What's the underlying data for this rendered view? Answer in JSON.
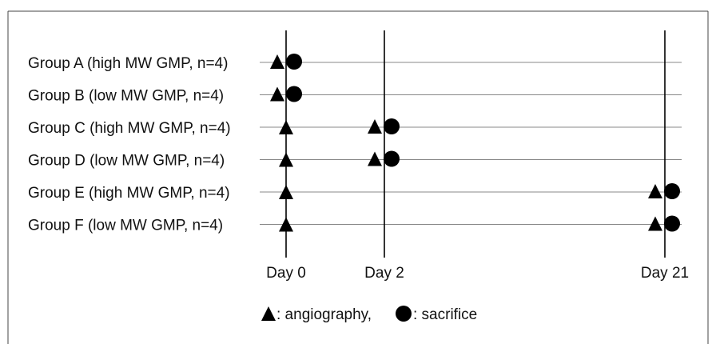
{
  "groups": [
    {
      "label": "Group A (high MW GMP, n=4)",
      "angiography_day": "Day 0",
      "sacrifice_day": "Day 0"
    },
    {
      "label": "Group B (low MW GMP, n=4)",
      "angiography_day": "Day 0",
      "sacrifice_day": "Day 0"
    },
    {
      "label": "Group C (high MW GMP, n=4)",
      "angiography_day": "Day 2",
      "sacrifice_day": "Day 2"
    },
    {
      "label": "Group D (low MW GMP, n=4)",
      "angiography_day": "Day 2",
      "sacrifice_day": "Day 2"
    },
    {
      "label": "Group E (high MW GMP, n=4)",
      "angiography_day": "Day 21",
      "sacrifice_day": "Day 21"
    },
    {
      "label": "Group F (low MW GMP, n=4)",
      "angiography_day": "Day 21",
      "sacrifice_day": "Day 21"
    }
  ],
  "days": [
    "Day 0",
    "Day 2",
    "Day 21"
  ],
  "baseline_angiography_day": "Day 0",
  "legend": {
    "angiography": ": angiography,",
    "sacrifice": ": sacrifice"
  }
}
